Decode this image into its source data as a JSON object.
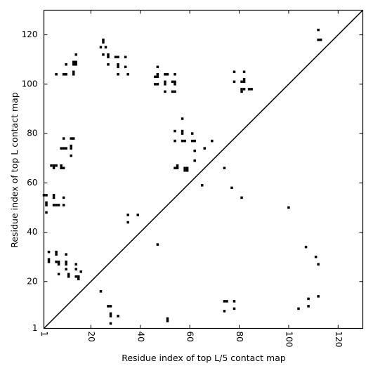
{
  "chart_data": {
    "type": "scatter",
    "xlabel": "Residue index of top L/5 contact map",
    "ylabel": "Residue index of top L contact map",
    "xlim": [
      1,
      130
    ],
    "ylim": [
      1,
      130
    ],
    "x_ticks": [
      "1",
      "20",
      "40",
      "60",
      "80",
      "100",
      "120"
    ],
    "x_tick_values": [
      1,
      20,
      40,
      60,
      80,
      100,
      120
    ],
    "y_ticks": [
      "1",
      "20",
      "40",
      "60",
      "80",
      "100",
      "120"
    ],
    "y_tick_values": [
      1,
      20,
      40,
      60,
      80,
      100,
      120
    ],
    "diagonal": true,
    "marker_color": "#000000",
    "upper_triangle": [
      [
        25,
        118
      ],
      [
        25,
        117
      ],
      [
        24,
        115
      ],
      [
        26,
        115
      ],
      [
        25,
        112
      ],
      [
        27,
        112
      ],
      [
        27,
        111
      ],
      [
        30,
        111
      ],
      [
        31,
        111
      ],
      [
        34,
        111
      ],
      [
        27,
        108
      ],
      [
        31,
        108
      ],
      [
        31,
        107
      ],
      [
        34,
        107
      ],
      [
        31,
        104
      ],
      [
        35,
        104
      ],
      [
        6,
        104
      ],
      [
        9,
        104
      ],
      [
        10,
        104
      ],
      [
        13,
        104
      ],
      [
        13,
        105
      ],
      [
        13,
        108
      ],
      [
        14,
        108
      ],
      [
        13,
        109
      ],
      [
        14,
        109
      ],
      [
        14,
        112
      ],
      [
        10,
        108
      ],
      [
        47,
        107
      ],
      [
        47,
        104
      ],
      [
        46,
        103
      ],
      [
        47,
        103
      ],
      [
        50,
        104
      ],
      [
        51,
        104
      ],
      [
        54,
        104
      ],
      [
        46,
        100
      ],
      [
        47,
        100
      ],
      [
        50,
        101
      ],
      [
        50,
        100
      ],
      [
        53,
        101
      ],
      [
        54,
        100
      ],
      [
        54,
        101
      ],
      [
        50,
        97
      ],
      [
        53,
        97
      ],
      [
        54,
        97
      ],
      [
        57,
        86
      ],
      [
        54,
        81
      ],
      [
        57,
        81
      ],
      [
        57,
        80
      ],
      [
        61,
        80
      ],
      [
        54,
        77
      ],
      [
        57,
        77
      ],
      [
        58,
        77
      ],
      [
        61,
        77
      ],
      [
        62,
        77
      ],
      [
        69,
        77
      ],
      [
        62,
        73
      ],
      [
        66,
        74
      ],
      [
        62,
        69
      ],
      [
        55,
        67
      ],
      [
        55,
        66
      ],
      [
        54,
        66
      ],
      [
        58,
        66
      ],
      [
        59,
        66
      ],
      [
        58,
        65
      ],
      [
        59,
        65
      ],
      [
        65,
        59
      ],
      [
        4,
        67
      ],
      [
        5,
        67
      ],
      [
        6,
        67
      ],
      [
        5,
        66
      ],
      [
        8,
        67
      ],
      [
        8,
        66
      ],
      [
        9,
        66
      ],
      [
        8,
        74
      ],
      [
        9,
        74
      ],
      [
        10,
        74
      ],
      [
        9,
        78
      ],
      [
        12,
        78
      ],
      [
        13,
        78
      ],
      [
        12,
        75
      ],
      [
        12,
        74
      ],
      [
        12,
        71
      ],
      [
        1,
        55
      ],
      [
        2,
        55
      ],
      [
        5,
        55
      ],
      [
        5,
        54
      ],
      [
        9,
        54
      ],
      [
        2,
        52
      ],
      [
        2,
        51
      ],
      [
        5,
        51
      ],
      [
        6,
        51
      ],
      [
        7,
        51
      ],
      [
        9,
        51
      ],
      [
        2,
        48
      ],
      [
        78,
        105
      ],
      [
        82,
        105
      ],
      [
        78,
        101
      ],
      [
        81,
        101
      ],
      [
        82,
        101
      ],
      [
        82,
        102
      ],
      [
        81,
        98
      ],
      [
        82,
        98
      ],
      [
        81,
        97
      ],
      [
        84,
        98
      ],
      [
        85,
        98
      ],
      [
        112,
        122
      ],
      [
        113,
        118
      ],
      [
        112,
        118
      ],
      [
        74,
        66
      ],
      [
        77,
        58
      ],
      [
        81,
        54
      ],
      [
        100,
        50
      ],
      [
        35,
        47
      ],
      [
        39,
        47
      ],
      [
        35,
        44
      ],
      [
        47,
        35
      ]
    ],
    "lower_triangle": [
      [
        3,
        32
      ],
      [
        6,
        32
      ],
      [
        6,
        31
      ],
      [
        10,
        31
      ],
      [
        3,
        29
      ],
      [
        3,
        28
      ],
      [
        6,
        28
      ],
      [
        7,
        28
      ],
      [
        7,
        27
      ],
      [
        10,
        28
      ],
      [
        10,
        27
      ],
      [
        14,
        27
      ],
      [
        10,
        25
      ],
      [
        14,
        25
      ],
      [
        16,
        24
      ],
      [
        7,
        23
      ],
      [
        11,
        23
      ],
      [
        11,
        22
      ],
      [
        14,
        22
      ],
      [
        15,
        22
      ],
      [
        15,
        21
      ],
      [
        24,
        16
      ],
      [
        27,
        10
      ],
      [
        28,
        10
      ],
      [
        28,
        7
      ],
      [
        28,
        6
      ],
      [
        31,
        6
      ],
      [
        28,
        3
      ],
      [
        51,
        4
      ],
      [
        51,
        5
      ],
      [
        74,
        12
      ],
      [
        75,
        12
      ],
      [
        78,
        12
      ],
      [
        78,
        9
      ],
      [
        74,
        8
      ],
      [
        104,
        9
      ],
      [
        108,
        13
      ],
      [
        108,
        10
      ],
      [
        107,
        34
      ],
      [
        111,
        30
      ],
      [
        112,
        27
      ],
      [
        112,
        14
      ]
    ]
  }
}
